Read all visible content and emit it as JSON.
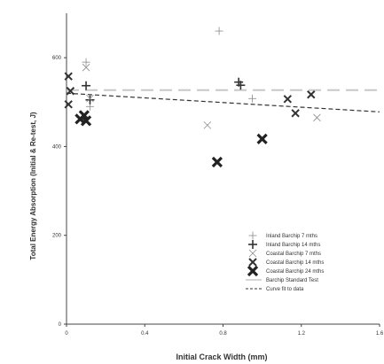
{
  "chart_data": {
    "type": "scatter",
    "title": "",
    "xlabel": "Initial Crack Width (mm)",
    "ylabel": "Total Energy Absorption (Initial & Re-test, J)",
    "xlim": [
      0,
      1.6
    ],
    "ylim": [
      0,
      700
    ],
    "x_ticks": [
      "0",
      "0.4",
      "0.8",
      "1.2",
      "1.6"
    ],
    "x_tick_values": [
      0,
      0.4,
      0.8,
      1.2,
      1.6
    ],
    "y_ticks": [
      "0",
      "200",
      "400",
      "600"
    ],
    "y_tick_values": [
      0,
      200,
      400,
      600
    ],
    "grid": false,
    "legend_position": "bottom-right",
    "series": [
      {
        "name": "Inland Barchip 7 mths",
        "marker": "plus-thin",
        "color": "#8a8a8a",
        "points": [
          [
            0.1,
            590
          ],
          [
            0.78,
            660
          ],
          [
            0.95,
            508
          ],
          [
            0.12,
            490
          ]
        ]
      },
      {
        "name": "Inland Barchip 14 mths",
        "marker": "plus-bold",
        "color": "#333333",
        "points": [
          [
            0.1,
            537
          ],
          [
            0.12,
            505
          ],
          [
            0.88,
            545
          ],
          [
            0.89,
            538
          ]
        ]
      },
      {
        "name": "Coastal Barchip 7 mths",
        "marker": "x-thin",
        "color": "#8a8a8a",
        "points": [
          [
            0.1,
            578
          ],
          [
            0.72,
            448
          ],
          [
            1.28,
            465
          ],
          [
            0.12,
            508
          ]
        ]
      },
      {
        "name": "Coastal Barchip 14 mths",
        "marker": "x-medium",
        "color": "#333333",
        "points": [
          [
            0.01,
            558
          ],
          [
            0.02,
            525
          ],
          [
            0.01,
            495
          ],
          [
            1.13,
            507
          ],
          [
            1.17,
            475
          ],
          [
            1.25,
            517
          ]
        ]
      },
      {
        "name": "Coastal Barchip 24 mths",
        "marker": "x-bold",
        "color": "#222222",
        "points": [
          [
            0.07,
            462
          ],
          [
            0.1,
            458
          ],
          [
            0.09,
            470
          ],
          [
            0.77,
            365
          ],
          [
            1.0,
            417
          ]
        ]
      }
    ],
    "lines": [
      {
        "name": "Barchip Standard Test",
        "style": "long-dash",
        "color": "#c8c8c8",
        "points": [
          [
            0,
            527
          ],
          [
            1.6,
            527
          ]
        ]
      },
      {
        "name": "Curve fit to data",
        "style": "short-dash",
        "color": "#333333",
        "points": [
          [
            0,
            520
          ],
          [
            1.6,
            478
          ]
        ]
      }
    ]
  }
}
